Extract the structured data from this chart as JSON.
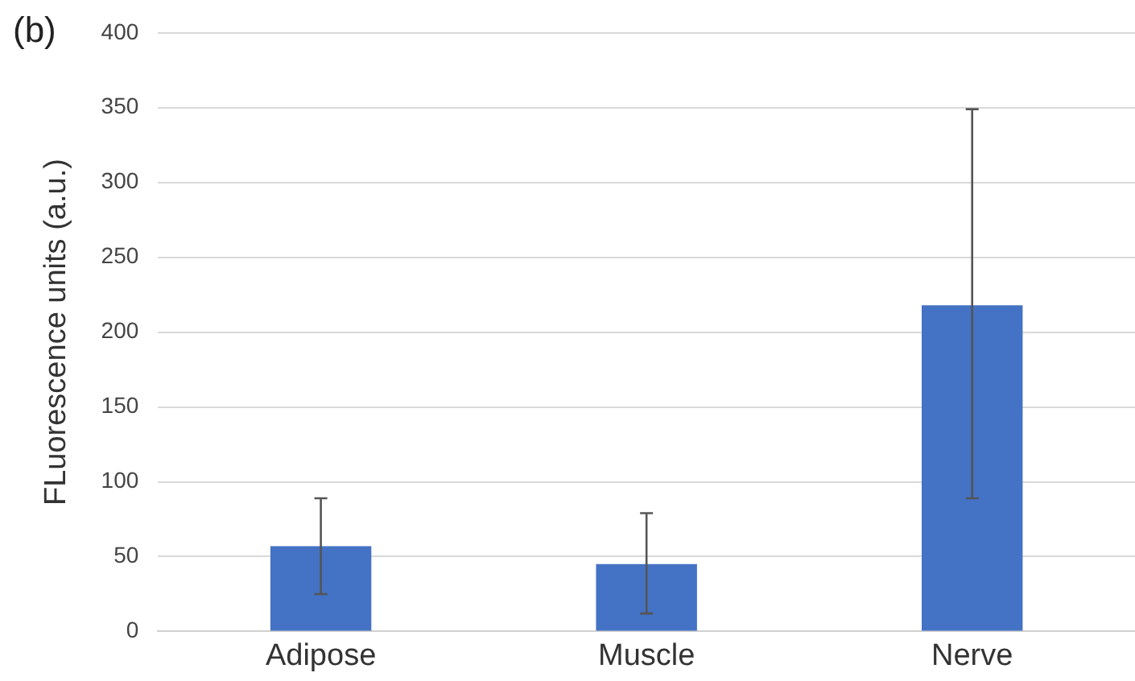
{
  "chart_data": {
    "type": "bar",
    "title": "(b)",
    "ylabel": "FLuorescence units (a.u.)",
    "categories": [
      "Adipose",
      "Muscle",
      "Nerve"
    ],
    "values": [
      57,
      45,
      218
    ],
    "color": "#4472c4",
    "errors": [
      [
        25,
        89
      ],
      [
        12,
        79
      ],
      [
        89,
        349
      ]
    ],
    "ylim": [
      0,
      400
    ],
    "yticks": [
      0,
      50,
      100,
      150,
      200,
      250,
      300,
      350,
      400
    ],
    "grid": "y",
    "legend": false
  }
}
